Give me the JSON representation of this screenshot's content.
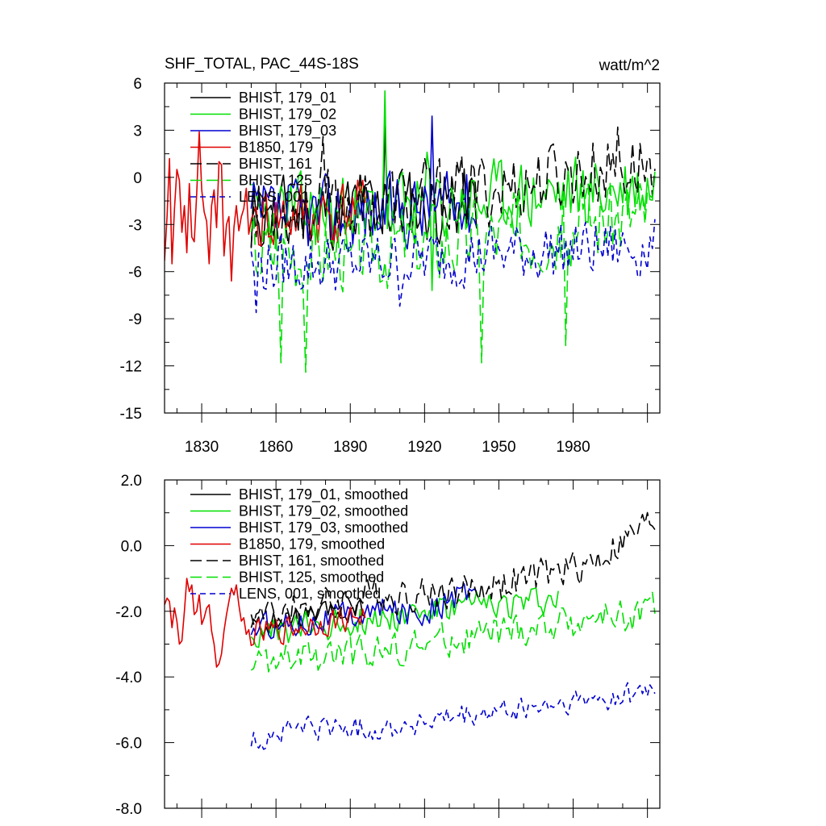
{
  "chart_data": [
    {
      "type": "line",
      "title": "SHF_TOTAL, PAC_44S-18S",
      "units": "watt/m^2",
      "xlim": [
        1815,
        2015
      ],
      "ylim": [
        -15,
        6
      ],
      "xticks": [
        1830,
        1860,
        1890,
        1920,
        1950,
        1980
      ],
      "xtick_labels": [
        "1830",
        "1860",
        "1890",
        "1920",
        "1950",
        "1980"
      ],
      "yticks": [
        6,
        3,
        0,
        -3,
        -6,
        -9,
        -12,
        -15
      ],
      "ytick_labels": [
        "6",
        "3",
        "0",
        "-3",
        "-6",
        "-9",
        "-12",
        "-15"
      ],
      "legend": "top-left",
      "series": [
        {
          "name": "BHIST, 179_01",
          "color": "#000000",
          "dash": "solid",
          "start": 1850,
          "end": 1941,
          "base": [
            [
              1850,
              -2.5
            ],
            [
              1880,
              -2.2
            ],
            [
              1910,
              -2.0
            ],
            [
              1941,
              -1.6
            ]
          ],
          "amp": 2.3,
          "seed": 11,
          "peaks": [
            [
              1850,
              -4.5
            ],
            [
              1852,
              -2.5
            ],
            [
              1904,
              3.3
            ]
          ]
        },
        {
          "name": "BHIST, 179_02",
          "color": "#00e000",
          "dash": "solid",
          "start": 1850,
          "end": 2013,
          "base": [
            [
              1850,
              -2.5
            ],
            [
              1890,
              -2.2
            ],
            [
              1930,
              -1.8
            ],
            [
              1960,
              -1.3
            ],
            [
              2013,
              -0.6
            ]
          ],
          "amp": 2.3,
          "seed": 23,
          "peaks": [
            [
              1904,
              5.5
            ],
            [
              1921,
              1.6
            ],
            [
              1923,
              -7.2
            ]
          ]
        },
        {
          "name": "BHIST, 179_03",
          "color": "#0000d0",
          "dash": "solid",
          "start": 1850,
          "end": 1941,
          "base": [
            [
              1850,
              -2.6
            ],
            [
              1900,
              -2.1
            ],
            [
              1941,
              -1.8
            ]
          ],
          "amp": 2.2,
          "seed": 37,
          "peaks": [
            [
              1923,
              3.9
            ]
          ]
        },
        {
          "name": "B1850, 179",
          "color": "#e00000",
          "dash": "solid",
          "start": 1815,
          "end": 1896,
          "base": [
            [
              1815,
              -3.0
            ],
            [
              1850,
              -2.7
            ],
            [
              1896,
              -2.2
            ]
          ],
          "amp": 2.1,
          "seed": 41,
          "points": [
            [
              1815,
              -5.3
            ],
            [
              1816,
              -2.5
            ],
            [
              1817,
              1.2
            ],
            [
              1818,
              -5.5
            ],
            [
              1819,
              -2.0
            ],
            [
              1820,
              0.5
            ],
            [
              1821,
              -0.2
            ],
            [
              1822,
              -3.5
            ],
            [
              1823,
              -1.8
            ],
            [
              1824,
              -4.8
            ],
            [
              1825,
              -0.4
            ],
            [
              1826,
              -3.8
            ],
            [
              1827,
              -4.1
            ],
            [
              1828,
              -1.0
            ],
            [
              1829,
              2.9
            ],
            [
              1830,
              -0.8
            ],
            [
              1831,
              -2.2
            ],
            [
              1832,
              -2.8
            ],
            [
              1833,
              -5.5
            ],
            [
              1834,
              -1.8
            ],
            [
              1835,
              -0.8
            ],
            [
              1836,
              -3.2
            ],
            [
              1837,
              1.0
            ],
            [
              1838,
              0.8
            ],
            [
              1839,
              -5.0
            ],
            [
              1840,
              -3.0
            ],
            [
              1841,
              -2.5
            ],
            [
              1842,
              -6.6
            ],
            [
              1843,
              -3.2
            ],
            [
              1844,
              -1.8
            ],
            [
              1845,
              -3.4
            ],
            [
              1846,
              -2.5
            ],
            [
              1847,
              -2.0
            ]
          ]
        },
        {
          "name": "BHIST, 161",
          "color": "#000000",
          "dash": "long",
          "start": 1850,
          "end": 2013,
          "base": [
            [
              1850,
              -2.3
            ],
            [
              1900,
              -1.6
            ],
            [
              1950,
              -0.7
            ],
            [
              1980,
              0.3
            ],
            [
              2013,
              0.9
            ]
          ],
          "amp": 2.2,
          "seed": 53,
          "peaks": [
            [
              1879,
              2.6
            ],
            [
              1998,
              3.2
            ]
          ]
        },
        {
          "name": "BHIST, 125",
          "color": "#00e000",
          "dash": "long",
          "start": 1850,
          "end": 2013,
          "base": [
            [
              1850,
              -4.6
            ],
            [
              1900,
              -4.3
            ],
            [
              1950,
              -3.6
            ],
            [
              1980,
              -2.8
            ],
            [
              2013,
              -2.2
            ]
          ],
          "amp": 2.6,
          "seed": 67,
          "peaks": [
            [
              1862,
              -11.8
            ],
            [
              1872,
              -12.4
            ],
            [
              1943,
              -11.8
            ],
            [
              1977,
              -10.7
            ]
          ]
        },
        {
          "name": "LENS, 001",
          "color": "#0000d0",
          "dash": "short",
          "start": 1850,
          "end": 2013,
          "base": [
            [
              1850,
              -5.6
            ],
            [
              1900,
              -5.4
            ],
            [
              1950,
              -4.8
            ],
            [
              1980,
              -4.6
            ],
            [
              2013,
              -4.4
            ]
          ],
          "amp": 1.8,
          "seed": 79,
          "peaks": [
            [
              1852,
              -8.6
            ],
            [
              1910,
              -8.2
            ]
          ]
        }
      ]
    },
    {
      "type": "line",
      "title": "",
      "xlim": [
        1815,
        2015
      ],
      "ylim": [
        -8,
        2
      ],
      "yticks": [
        2,
        0,
        -2,
        -4,
        -6,
        -8
      ],
      "ytick_labels": [
        "2.0",
        "0.0",
        "-2.0",
        "-4.0",
        "-6.0",
        "-8.0"
      ],
      "legend": "top-left",
      "series": [
        {
          "name": "BHIST, 179_01, smoothed",
          "color": "#000000",
          "dash": "solid",
          "start": 1850,
          "end": 1896,
          "base": [
            [
              1850,
              -2.5
            ],
            [
              1872,
              -2.2
            ],
            [
              1896,
              -2.0
            ]
          ],
          "amp": 0.35,
          "seed": 111
        },
        {
          "name": "BHIST, 179_02, smoothed",
          "color": "#00e000",
          "dash": "solid",
          "start": 1850,
          "end": 1974,
          "base": [
            [
              1850,
              -2.8
            ],
            [
              1880,
              -2.4
            ],
            [
              1920,
              -2.0
            ],
            [
              1950,
              -1.8
            ],
            [
              1974,
              -1.6
            ]
          ],
          "amp": 0.45,
          "seed": 123
        },
        {
          "name": "BHIST, 179_03, smoothed",
          "color": "#0000d0",
          "dash": "solid",
          "start": 1850,
          "end": 1941,
          "base": [
            [
              1850,
              -2.5
            ],
            [
              1900,
              -2.0
            ],
            [
              1920,
              -2.0
            ],
            [
              1941,
              -1.3
            ]
          ],
          "amp": 0.4,
          "seed": 137
        },
        {
          "name": "B1850, 179, smoothed",
          "color": "#e00000",
          "dash": "solid",
          "start": 1815,
          "end": 1896,
          "base": [
            [
              1815,
              -1.8
            ],
            [
              1845,
              -2.8
            ],
            [
              1860,
              -2.6
            ],
            [
              1896,
              -2.1
            ]
          ],
          "amp": 0.4,
          "seed": 141,
          "points": [
            [
              1815,
              -1.8
            ],
            [
              1816,
              -1.6
            ],
            [
              1817,
              -1.7
            ],
            [
              1818,
              -2.5
            ],
            [
              1819,
              -1.9
            ],
            [
              1820,
              -2.3
            ],
            [
              1821,
              -3.0
            ],
            [
              1822,
              -2.9
            ],
            [
              1823,
              -2.0
            ],
            [
              1824,
              -1.0
            ],
            [
              1825,
              -1.4
            ],
            [
              1826,
              -1.2
            ],
            [
              1827,
              -2.1
            ],
            [
              1828,
              -2.0
            ],
            [
              1829,
              -1.5
            ],
            [
              1830,
              -2.4
            ],
            [
              1831,
              -2.2
            ],
            [
              1832,
              -1.9
            ],
            [
              1833,
              -1.8
            ],
            [
              1834,
              -2.6
            ],
            [
              1835,
              -3.0
            ],
            [
              1836,
              -3.7
            ],
            [
              1837,
              -3.6
            ],
            [
              1838,
              -3.3
            ],
            [
              1839,
              -2.6
            ],
            [
              1840,
              -2.1
            ],
            [
              1841,
              -1.7
            ],
            [
              1842,
              -1.3
            ],
            [
              1843,
              -1.5
            ],
            [
              1844,
              -1.2
            ],
            [
              1845,
              -1.8
            ],
            [
              1846,
              -2.3
            ],
            [
              1847,
              -2.2
            ]
          ]
        },
        {
          "name": "BHIST, 161, smoothed",
          "color": "#000000",
          "dash": "long",
          "start": 1850,
          "end": 2013,
          "base": [
            [
              1850,
              -2.2
            ],
            [
              1890,
              -1.6
            ],
            [
              1940,
              -1.3
            ],
            [
              1970,
              -0.9
            ],
            [
              1990,
              -0.4
            ],
            [
              2013,
              0.8
            ]
          ],
          "amp": 0.5,
          "seed": 153
        },
        {
          "name": "BHIST, 125, smoothed",
          "color": "#00e000",
          "dash": "long",
          "start": 1850,
          "end": 2013,
          "base": [
            [
              1850,
              -3.6
            ],
            [
              1880,
              -3.4
            ],
            [
              1920,
              -3.0
            ],
            [
              1960,
              -2.6
            ],
            [
              1990,
              -2.2
            ],
            [
              2013,
              -2.0
            ]
          ],
          "amp": 0.5,
          "seed": 167
        },
        {
          "name": "LENS, 001, smoothed",
          "color": "#0000d0",
          "dash": "short",
          "start": 1850,
          "end": 2013,
          "base": [
            [
              1850,
              -6.0
            ],
            [
              1870,
              -5.5
            ],
            [
              1900,
              -5.6
            ],
            [
              1930,
              -5.3
            ],
            [
              1960,
              -5.0
            ],
            [
              1990,
              -4.7
            ],
            [
              2013,
              -4.4
            ]
          ],
          "amp": 0.35,
          "seed": 179
        }
      ]
    }
  ]
}
